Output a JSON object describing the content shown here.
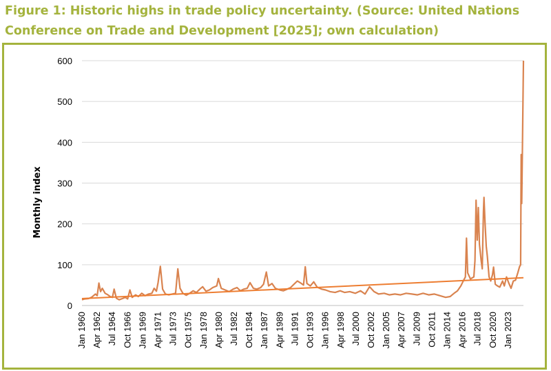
{
  "figure": {
    "title": "Figure 1: Historic highs in trade policy uncertainty. (Source: United Nations Conference on Trade and Development [2025]; own calculation)"
  },
  "chart_data": {
    "type": "line",
    "ylabel": "Monthly index",
    "xlabel": "",
    "ylim": [
      0,
      600
    ],
    "yticks": [
      0,
      100,
      200,
      300,
      400,
      500,
      600
    ],
    "grid": true,
    "legend": "none",
    "xlim": [
      "1960-01",
      "2025-04"
    ],
    "x_tick_labels": [
      "Jan 1960",
      "Apr 1962",
      "Jul 1964",
      "Oct 1966",
      "Jan 1969",
      "Apr 1971",
      "Jul 1973",
      "Oct 1975",
      "Jan 1978",
      "Apr 1980",
      "Jul 1982",
      "Oct 1984",
      "Jan 1987",
      "Apr 1989",
      "Jul 1991",
      "Oct 1993",
      "Jan 1996",
      "Apr 1998",
      "Jul 2000",
      "Oct 2002",
      "Jan 2005",
      "Apr 2007",
      "Jul 2009",
      "Oct 2011",
      "Jan 2014",
      "Apr 2016",
      "Jul 2018",
      "Oct 2020",
      "Jan 2023"
    ],
    "colors": {
      "series": "#d9834f",
      "trend": "#ed7d31",
      "grid": "#d9d9d9"
    },
    "series": [
      {
        "values_desc": "monthly index (approximate read)",
        "points": [
          [
            "1960-01",
            14
          ],
          [
            "1960-06",
            16
          ],
          [
            "1961-01",
            17
          ],
          [
            "1961-06",
            20
          ],
          [
            "1962-01",
            28
          ],
          [
            "1962-04",
            24
          ],
          [
            "1962-07",
            55
          ],
          [
            "1962-10",
            34
          ],
          [
            "1963-01",
            42
          ],
          [
            "1963-06",
            30
          ],
          [
            "1963-11",
            26
          ],
          [
            "1964-03",
            22
          ],
          [
            "1964-07",
            20
          ],
          [
            "1964-10",
            40
          ],
          [
            "1965-02",
            18
          ],
          [
            "1965-07",
            14
          ],
          [
            "1966-01",
            17
          ],
          [
            "1966-06",
            20
          ],
          [
            "1966-10",
            16
          ],
          [
            "1967-02",
            38
          ],
          [
            "1967-06",
            20
          ],
          [
            "1967-12",
            26
          ],
          [
            "1968-05",
            22
          ],
          [
            "1968-11",
            30
          ],
          [
            "1969-05",
            24
          ],
          [
            "1969-11",
            28
          ],
          [
            "1970-05",
            30
          ],
          [
            "1970-09",
            42
          ],
          [
            "1971-01",
            35
          ],
          [
            "1971-04",
            56
          ],
          [
            "1971-08",
            96
          ],
          [
            "1971-12",
            40
          ],
          [
            "1972-05",
            28
          ],
          [
            "1972-11",
            26
          ],
          [
            "1973-05",
            28
          ],
          [
            "1973-11",
            30
          ],
          [
            "1974-03",
            90
          ],
          [
            "1974-07",
            42
          ],
          [
            "1974-12",
            30
          ],
          [
            "1975-06",
            25
          ],
          [
            "1975-12",
            30
          ],
          [
            "1976-06",
            36
          ],
          [
            "1976-12",
            32
          ],
          [
            "1977-06",
            40
          ],
          [
            "1977-11",
            46
          ],
          [
            "1978-05",
            35
          ],
          [
            "1978-11",
            38
          ],
          [
            "1979-05",
            44
          ],
          [
            "1979-12",
            48
          ],
          [
            "1980-03",
            66
          ],
          [
            "1980-08",
            42
          ],
          [
            "1981-03",
            38
          ],
          [
            "1981-10",
            34
          ],
          [
            "1982-05",
            40
          ],
          [
            "1982-12",
            44
          ],
          [
            "1983-06",
            36
          ],
          [
            "1983-12",
            40
          ],
          [
            "1984-06",
            42
          ],
          [
            "1984-11",
            56
          ],
          [
            "1985-05",
            42
          ],
          [
            "1985-11",
            40
          ],
          [
            "1986-06",
            44
          ],
          [
            "1986-11",
            52
          ],
          [
            "1987-04",
            82
          ],
          [
            "1987-08",
            48
          ],
          [
            "1988-02",
            54
          ],
          [
            "1988-08",
            42
          ],
          [
            "1989-04",
            38
          ],
          [
            "1989-10",
            36
          ],
          [
            "1990-05",
            40
          ],
          [
            "1990-11",
            44
          ],
          [
            "1991-05",
            52
          ],
          [
            "1991-11",
            60
          ],
          [
            "1992-04",
            56
          ],
          [
            "1992-10",
            50
          ],
          [
            "1993-01",
            95
          ],
          [
            "1993-04",
            54
          ],
          [
            "1993-10",
            48
          ],
          [
            "1994-04",
            58
          ],
          [
            "1994-10",
            45
          ],
          [
            "1995-06",
            40
          ],
          [
            "1996-01",
            38
          ],
          [
            "1996-09",
            34
          ],
          [
            "1997-06",
            32
          ],
          [
            "1998-03",
            36
          ],
          [
            "1998-11",
            32
          ],
          [
            "1999-08",
            34
          ],
          [
            "2000-06",
            30
          ],
          [
            "2001-03",
            36
          ],
          [
            "2001-11",
            28
          ],
          [
            "2002-07",
            46
          ],
          [
            "2003-03",
            34
          ],
          [
            "2003-11",
            28
          ],
          [
            "2004-09",
            30
          ],
          [
            "2005-06",
            26
          ],
          [
            "2006-04",
            28
          ],
          [
            "2007-02",
            26
          ],
          [
            "2007-12",
            30
          ],
          [
            "2008-10",
            28
          ],
          [
            "2009-08",
            26
          ],
          [
            "2010-06",
            30
          ],
          [
            "2011-04",
            26
          ],
          [
            "2012-02",
            28
          ],
          [
            "2012-12",
            24
          ],
          [
            "2013-10",
            20
          ],
          [
            "2014-06",
            22
          ],
          [
            "2015-01",
            30
          ],
          [
            "2015-07",
            36
          ],
          [
            "2016-01",
            48
          ],
          [
            "2016-06",
            62
          ],
          [
            "2016-09",
            70
          ],
          [
            "2016-11",
            165
          ],
          [
            "2017-01",
            80
          ],
          [
            "2017-06",
            65
          ],
          [
            "2017-12",
            70
          ],
          [
            "2018-02",
            110
          ],
          [
            "2018-04",
            258
          ],
          [
            "2018-06",
            160
          ],
          [
            "2018-08",
            240
          ],
          [
            "2018-10",
            150
          ],
          [
            "2019-01",
            110
          ],
          [
            "2019-03",
            90
          ],
          [
            "2019-05",
            230
          ],
          [
            "2019-06",
            265
          ],
          [
            "2019-08",
            200
          ],
          [
            "2019-10",
            145
          ],
          [
            "2019-12",
            120
          ],
          [
            "2020-03",
            70
          ],
          [
            "2020-06",
            60
          ],
          [
            "2020-09",
            75
          ],
          [
            "2020-11",
            94
          ],
          [
            "2021-02",
            52
          ],
          [
            "2021-06",
            48
          ],
          [
            "2021-10",
            45
          ],
          [
            "2022-03",
            60
          ],
          [
            "2022-06",
            48
          ],
          [
            "2022-10",
            70
          ],
          [
            "2023-02",
            55
          ],
          [
            "2023-06",
            42
          ],
          [
            "2023-10",
            60
          ],
          [
            "2024-02",
            62
          ],
          [
            "2024-06",
            80
          ],
          [
            "2024-09",
            95
          ],
          [
            "2024-11",
            100
          ],
          [
            "2024-12",
            370
          ],
          [
            "2025-01",
            250
          ],
          [
            "2025-02",
            370
          ],
          [
            "2025-04",
            600
          ]
        ]
      }
    ],
    "trendline": {
      "type": "linear",
      "start": [
        "1960-01",
        17
      ],
      "end": [
        "2025-04",
        68
      ]
    }
  }
}
